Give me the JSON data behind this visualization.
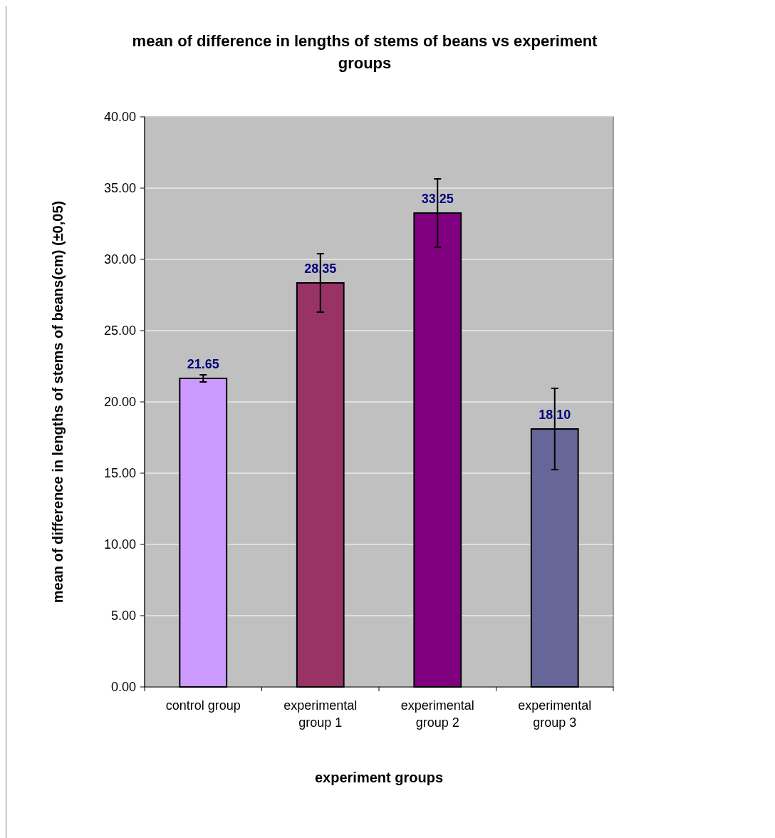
{
  "chart_data": {
    "type": "bar",
    "title": "mean of difference in lengths of stems of beans vs experiment groups",
    "xlabel": "experiment groups",
    "ylabel": "mean of difference in lengths of stems of beans(cm) (±0,05)",
    "categories": [
      "control group",
      "experimental group 1",
      "experimental group 2",
      "experimental group 3"
    ],
    "values": [
      21.65,
      28.35,
      33.25,
      18.1
    ],
    "colors": [
      "#cc99ff",
      "#993366",
      "#800080",
      "#666699"
    ],
    "errors": [
      0.25,
      2.05,
      2.4,
      2.85
    ],
    "value_labels": [
      "21.65",
      "28.35",
      "33.25",
      "18.10"
    ],
    "ylim": [
      0,
      40
    ],
    "yticks": [
      {
        "value": 0,
        "label": "0.00"
      },
      {
        "value": 5,
        "label": "5.00"
      },
      {
        "value": 10,
        "label": "10.00"
      },
      {
        "value": 15,
        "label": "15.00"
      },
      {
        "value": 20,
        "label": "20.00"
      },
      {
        "value": 25,
        "label": "25.00"
      },
      {
        "value": 30,
        "label": "30.00"
      },
      {
        "value": 35,
        "label": "35.00"
      },
      {
        "value": 40,
        "label": "40.00"
      }
    ],
    "grid": "y"
  }
}
